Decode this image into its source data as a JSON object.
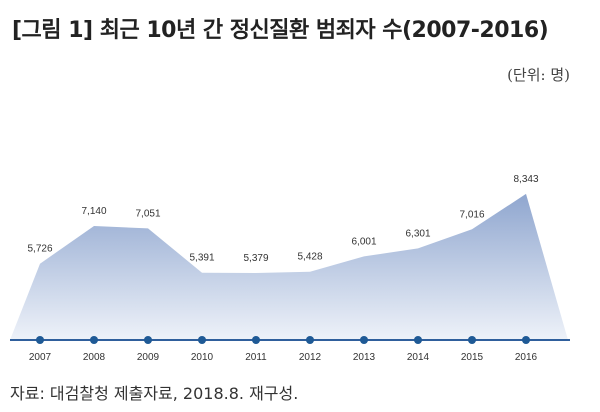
{
  "header": {
    "title": "[그림 1] 최근 10년 간 정신질환 범죄자 수(2007-2016)",
    "unit": "(단위: 명)"
  },
  "footer": {
    "source": "자료: 대검찰청 제출자료, 2018.8. 재구성."
  },
  "colors": {
    "area_top": "#8fa6cf",
    "area_bottom": "#eef2f9",
    "axis": "#2f5f9c",
    "marker": "#1f5a96"
  },
  "chart_data": {
    "type": "area",
    "categories": [
      "2007",
      "2008",
      "2009",
      "2010",
      "2011",
      "2012",
      "2013",
      "2014",
      "2015",
      "2016"
    ],
    "values": [
      5726,
      7140,
      7051,
      5391,
      5379,
      5428,
      6001,
      6301,
      7016,
      8343
    ],
    "value_labels": [
      "5,726",
      "7,140",
      "7,051",
      "5,391",
      "5,379",
      "5,428",
      "6,001",
      "6,301",
      "7,016",
      "8,343"
    ],
    "title": "[그림 1] 최근 10년 간 정신질환 범죄자 수(2007-2016)",
    "unit": "(단위: 명)",
    "grid": false,
    "legend": "none"
  }
}
